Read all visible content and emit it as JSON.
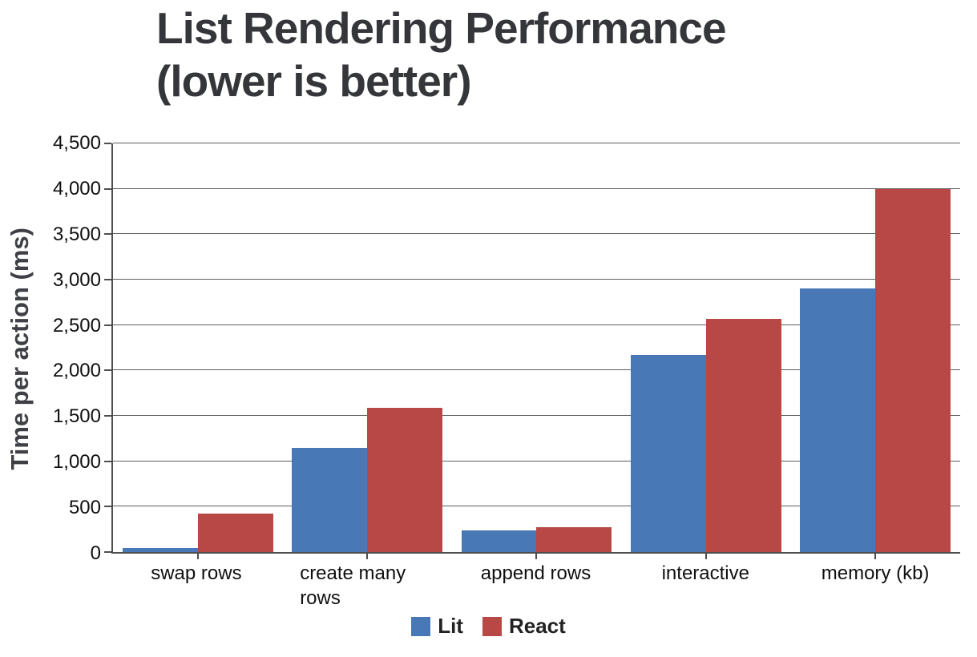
{
  "title_lines": [
    "List Rendering Performance",
    "(lower is better)"
  ],
  "colors": {
    "lit_blue": "#4878B6",
    "react_red": "#B74845",
    "gridline_gray": "#5E5E5E",
    "axis_gray": "#4E4E4E",
    "title_gray": "#35363A",
    "label_black": "#101010"
  },
  "chart_data": {
    "type": "bar",
    "title": "List Rendering Performance (lower is better)",
    "xlabel": "",
    "ylabel": "Time per action (ms)",
    "categories": [
      "swap rows",
      "create many rows",
      "append rows",
      "interactive",
      "memory (kb)"
    ],
    "series": [
      {
        "name": "Lit",
        "color": "#4878B6",
        "values": [
          45,
          1150,
          240,
          2170,
          2900
        ]
      },
      {
        "name": "React",
        "color": "#B74845",
        "values": [
          420,
          1590,
          275,
          2570,
          4000
        ]
      }
    ],
    "ylim": [
      0,
      4500
    ],
    "y_tick_step": 500,
    "y_ticks": [
      0,
      500,
      1000,
      1500,
      2000,
      2500,
      3000,
      3500,
      4000,
      4500
    ],
    "y_tick_labels": [
      "0",
      "500",
      "1,000",
      "1,500",
      "2,000",
      "2,500",
      "3,000",
      "3,500",
      "4,000",
      "4,500"
    ],
    "grid": true,
    "legend_position": "bottom"
  }
}
